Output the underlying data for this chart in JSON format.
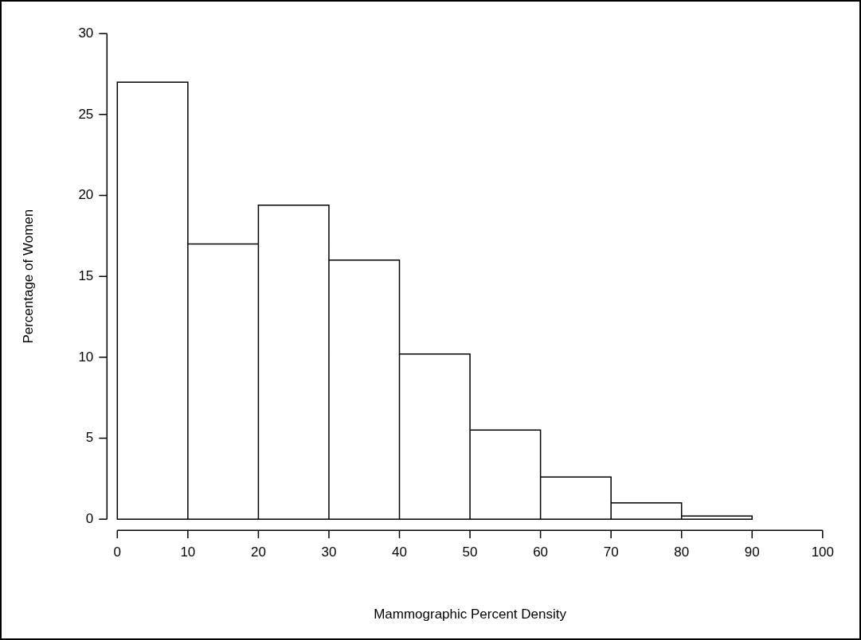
{
  "chart_data": {
    "type": "histogram",
    "xlabel": "Mammographic Percent Density",
    "ylabel": "Percentage of Women",
    "bins": [
      0,
      10,
      20,
      30,
      40,
      50,
      60,
      70,
      80,
      90
    ],
    "values": [
      27.0,
      17.0,
      19.4,
      16.0,
      10.2,
      5.5,
      2.6,
      1.0,
      0.2
    ],
    "color": "#ffffff",
    "xlim": [
      0,
      100
    ],
    "xticks": [
      0,
      10,
      20,
      30,
      40,
      50,
      60,
      70,
      80,
      90,
      100
    ],
    "ylim": [
      0,
      30
    ],
    "yticks": [
      0,
      5,
      10,
      15,
      20,
      25,
      30
    ]
  }
}
